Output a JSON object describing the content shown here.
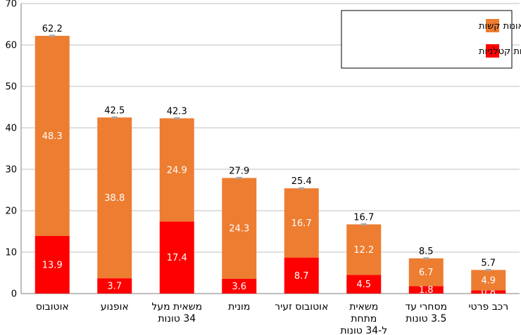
{
  "chart_data": {
    "type": "bar",
    "stacked": true,
    "categories": [
      "אוטובוס",
      "אופנוע",
      "משאית מעל 34 טונות",
      "מונית",
      "אוטובוס זעיר",
      "משאית מתחת ל-34 טונות",
      "מסחרי עד 3.5 טונות",
      "רכב פרטי"
    ],
    "category_lines": [
      [
        "אוטובוס"
      ],
      [
        "אופנוע"
      ],
      [
        "משאית מעל",
        "34 טונות"
      ],
      [
        "מונית"
      ],
      [
        "אוטובוס זעיר"
      ],
      [
        "משאית",
        "מתחת",
        "ל-34 טונות"
      ],
      [
        "מסחרי עד",
        "3.5 טונות"
      ],
      [
        "רכב פרטי"
      ]
    ],
    "series": [
      {
        "name": "מעורבות בתאונות קטלניות",
        "color": "#ff0000",
        "values": [
          13.9,
          3.7,
          17.4,
          3.6,
          8.7,
          4.5,
          1.8,
          0.8
        ]
      },
      {
        "name": "מעורבות בתאונות קשות",
        "color": "#ed7d31",
        "values": [
          48.3,
          38.8,
          24.9,
          24.3,
          16.7,
          12.2,
          6.7,
          4.9
        ]
      }
    ],
    "totals": [
      62.2,
      42.5,
      42.3,
      27.9,
      25.4,
      16.7,
      8.5,
      5.7
    ],
    "ylim": [
      0,
      70
    ],
    "yticks": [
      0,
      10,
      20,
      30,
      40,
      50,
      60,
      70
    ],
    "grid": true,
    "legend_position": "top-right",
    "legend_order": [
      1,
      0
    ],
    "total_marker_color": "#a6a6a6",
    "title": "",
    "xlabel": "",
    "ylabel": ""
  }
}
